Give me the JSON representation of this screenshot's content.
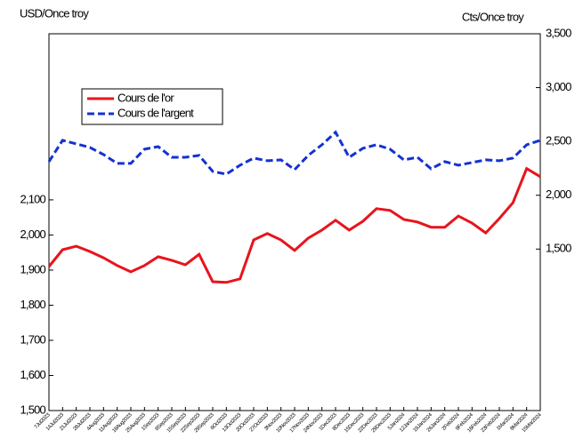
{
  "chart_data": {
    "type": "line",
    "y_label": "USD/Once troy",
    "y2_label": "Cts/Once troy",
    "categories": [
      "7Jul2023",
      "14Jul2023",
      "21Jul2023",
      "28Jul2023",
      "4Aug2023",
      "11Aug2023",
      "18Aug2023",
      "25Aug2023",
      "1Sep2023",
      "8Sep2023",
      "15Sep2023",
      "22Sep2023",
      "29Sep2023",
      "6Oct2023",
      "13Oct2023",
      "20Oct2023",
      "27Oct2023",
      "3Nov2023",
      "10Nov2023",
      "17Nov2023",
      "24Nov2023",
      "1Dec2023",
      "8Dec2023",
      "15Dec2023",
      "22Dec2023",
      "29Dec2023",
      "5Jan2024",
      "12Jan2024",
      "19Jan2024",
      "26Jan2024",
      "2Feb2024",
      "9Feb2024",
      "16Feb2024",
      "23Feb2024",
      "1Mar2024",
      "8Mar2024",
      "15Mar2024"
    ],
    "series": [
      {
        "name": "Cours de l'or",
        "color": "#e8141c",
        "dash": false,
        "axis": "y",
        "values": [
          1910,
          1958,
          1968,
          1953,
          1935,
          1913,
          1895,
          1913,
          1938,
          1928,
          1915,
          1945,
          1867,
          1865,
          1875,
          1986,
          2004,
          1986,
          1956,
          1991,
          2014,
          2042,
          2014,
          2039,
          2075,
          2070,
          2044,
          2037,
          2022,
          2022,
          2054,
          2034,
          2006,
          2047,
          2092,
          2189,
          2166
        ]
      },
      {
        "name": "Cours de l'argent",
        "color": "#1432d2",
        "dash": true,
        "axis": "y2",
        "values": [
          2312,
          2510,
          2477,
          2444,
          2378,
          2296,
          2296,
          2428,
          2452,
          2353,
          2353,
          2370,
          2221,
          2196,
          2279,
          2345,
          2320,
          2329,
          2238,
          2370,
          2469,
          2585,
          2353,
          2436,
          2469,
          2428,
          2329,
          2353,
          2246,
          2312,
          2279,
          2304,
          2329,
          2320,
          2345,
          2469,
          2510
        ]
      }
    ],
    "ylim": [
      1500,
      2573
    ],
    "yticks": [
      {
        "value": 1500,
        "label": "1,500"
      },
      {
        "value": 1600,
        "label": "1,600"
      },
      {
        "value": 1700,
        "label": "1,700"
      },
      {
        "value": 1800,
        "label": "1,800"
      },
      {
        "value": 1900,
        "label": "1,900"
      },
      {
        "value": 2000,
        "label": "2,000"
      },
      {
        "value": 2100,
        "label": "2,100"
      }
    ],
    "y2lim": [
      0,
      3500
    ],
    "y2ticks": [
      {
        "value": 1500,
        "label": "1,500"
      },
      {
        "value": 2000,
        "label": "2,000"
      },
      {
        "value": 2500,
        "label": "2,500"
      },
      {
        "value": 3000,
        "label": "3,000"
      },
      {
        "value": 3500,
        "label": "3,500"
      }
    ],
    "grid": false,
    "legend": "upper left"
  }
}
